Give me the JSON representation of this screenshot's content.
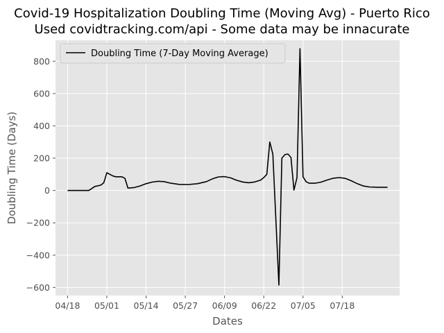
{
  "chart_data": {
    "type": "line",
    "title": "Covid-19 Hospitalization Doubling Time (Moving Avg) - Puerto Rico",
    "subtitle": "Used covidtracking.com/api - Some data may be innacurate",
    "xlabel": "Dates",
    "ylabel": "Doubling Time (Days)",
    "x_tick_labels": [
      "04/18",
      "05/01",
      "05/14",
      "05/27",
      "06/09",
      "06/22",
      "07/05",
      "07/18"
    ],
    "y_ticks": [
      -600,
      -400,
      -200,
      0,
      200,
      400,
      600,
      800
    ],
    "xlim": [
      "2020-04-14",
      "2020-08-06"
    ],
    "ylim": [
      -650,
      930
    ],
    "grid": true,
    "legend_position": "upper-left",
    "series": [
      {
        "name": "Doubling Time (7-Day Moving Average)",
        "color": "#000000",
        "points": [
          [
            "2020-04-18",
            0
          ],
          [
            "2020-04-25",
            0
          ],
          [
            "2020-04-26",
            12
          ],
          [
            "2020-04-27",
            25
          ],
          [
            "2020-04-29",
            33
          ],
          [
            "2020-04-30",
            48
          ],
          [
            "2020-05-01",
            110
          ],
          [
            "2020-05-02",
            100
          ],
          [
            "2020-05-03",
            90
          ],
          [
            "2020-05-04",
            85
          ],
          [
            "2020-05-06",
            85
          ],
          [
            "2020-05-07",
            75
          ],
          [
            "2020-05-08",
            15
          ],
          [
            "2020-05-10",
            18
          ],
          [
            "2020-05-12",
            28
          ],
          [
            "2020-05-14",
            42
          ],
          [
            "2020-05-16",
            52
          ],
          [
            "2020-05-18",
            57
          ],
          [
            "2020-05-20",
            55
          ],
          [
            "2020-05-22",
            46
          ],
          [
            "2020-05-25",
            38
          ],
          [
            "2020-05-28",
            37
          ],
          [
            "2020-05-31",
            42
          ],
          [
            "2020-06-03",
            55
          ],
          [
            "2020-06-05",
            72
          ],
          [
            "2020-06-07",
            84
          ],
          [
            "2020-06-09",
            86
          ],
          [
            "2020-06-11",
            78
          ],
          [
            "2020-06-13",
            63
          ],
          [
            "2020-06-15",
            53
          ],
          [
            "2020-06-17",
            48
          ],
          [
            "2020-06-19",
            53
          ],
          [
            "2020-06-21",
            65
          ],
          [
            "2020-06-22",
            80
          ],
          [
            "2020-06-23",
            100
          ],
          [
            "2020-06-24",
            300
          ],
          [
            "2020-06-25",
            225
          ],
          [
            "2020-06-27",
            -585
          ],
          [
            "2020-06-28",
            200
          ],
          [
            "2020-06-29",
            222
          ],
          [
            "2020-06-30",
            226
          ],
          [
            "2020-07-01",
            205
          ],
          [
            "2020-07-02",
            2
          ],
          [
            "2020-07-03",
            80
          ],
          [
            "2020-07-04",
            878
          ],
          [
            "2020-07-05",
            85
          ],
          [
            "2020-07-06",
            55
          ],
          [
            "2020-07-07",
            45
          ],
          [
            "2020-07-09",
            45
          ],
          [
            "2020-07-11",
            52
          ],
          [
            "2020-07-13",
            65
          ],
          [
            "2020-07-15",
            76
          ],
          [
            "2020-07-17",
            80
          ],
          [
            "2020-07-19",
            75
          ],
          [
            "2020-07-21",
            60
          ],
          [
            "2020-07-23",
            42
          ],
          [
            "2020-07-25",
            28
          ],
          [
            "2020-07-27",
            22
          ],
          [
            "2020-07-30",
            20
          ],
          [
            "2020-08-02",
            20
          ]
        ]
      }
    ]
  }
}
